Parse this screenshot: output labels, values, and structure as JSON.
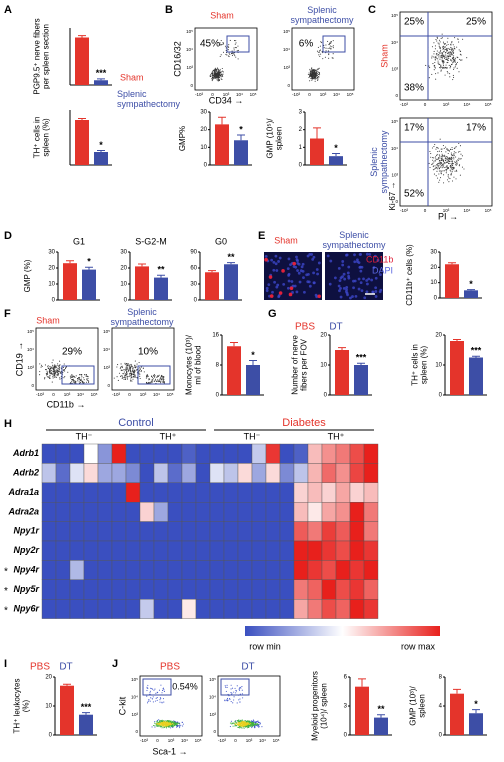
{
  "panel_letters": [
    "A",
    "B",
    "C",
    "D",
    "E",
    "F",
    "G",
    "H",
    "I",
    "J"
  ],
  "colors": [
    "#e4342b",
    "#3d4ea6"
  ],
  "groups": {
    "sham": "Sham",
    "splenic": "Splenic sympathectomy",
    "pbs": "PBS",
    "dt": "DT"
  },
  "flow": {
    "ticks": [
      "-10³",
      "0",
      "10³",
      "10⁴",
      "10⁵"
    ],
    "B": {
      "y_label": "CD16/32",
      "x_label": "CD34 →",
      "gates": [
        "45%",
        "6%"
      ]
    },
    "C": {
      "y_label": "Ki-67 →",
      "x_label": "PI →",
      "quadrants": [
        [
          "25%",
          "25%",
          "38%"
        ],
        [
          "17%",
          "17%",
          "52%"
        ]
      ]
    },
    "F": {
      "y_label": "CD19 →",
      "x_label": "CD11b →",
      "gates": [
        "29%",
        "10%"
      ]
    },
    "J": {
      "y_label": "C-kit",
      "x_label": "Sca-1 →",
      "gate": "0.54%"
    }
  },
  "imaging": {
    "stains": [
      "CD11b",
      "DAPI"
    ]
  },
  "charts": [
    {
      "ylabel": "PGP9.5⁺ nerve fibers per spleen section",
      "values": [
        10,
        1
      ],
      "errors": [
        0.4,
        0.3
      ],
      "sig": "***",
      "ylim": [
        0,
        12
      ]
    },
    {
      "ylabel": "TH⁺ cells in spleen (%)",
      "values": [
        45,
        13
      ],
      "errors": [
        1.5,
        1.5
      ],
      "sig": "*",
      "ylim": [
        0,
        55
      ]
    },
    {
      "ylabel": "GMP%",
      "values": [
        23,
        14
      ],
      "errors": [
        4,
        3
      ],
      "sig": "*",
      "ylim": [
        0,
        30
      ],
      "yticks": [
        0,
        10,
        20,
        30
      ]
    },
    {
      "ylabel": "GMP (10⁵)/ spleen",
      "values": [
        1.5,
        0.5
      ],
      "errors": [
        0.6,
        0.15
      ],
      "sig": "*",
      "ylim": [
        0,
        3
      ],
      "yticks": [
        0,
        1,
        2,
        3
      ]
    },
    {
      "title": "G1",
      "ylabel": "GMP (%)",
      "values": [
        23,
        19
      ],
      "errors": [
        1.5,
        1.5
      ],
      "sig": "*",
      "ylim": [
        0,
        30
      ],
      "yticks": [
        0,
        10,
        20,
        30
      ]
    },
    {
      "title": "S-G2-M",
      "values": [
        21,
        14
      ],
      "errors": [
        1.5,
        1.5
      ],
      "sig": "**",
      "ylim": [
        0,
        30
      ],
      "yticks": [
        0,
        10,
        20,
        30
      ]
    },
    {
      "title": "G0",
      "values": [
        52,
        67
      ],
      "errors": [
        3,
        3
      ],
      "sig": "**",
      "ylim": [
        0,
        90
      ],
      "yticks": [
        0,
        30,
        60,
        90
      ]
    },
    {
      "ylabel": "CD11b⁺ cells (%)",
      "values": [
        22,
        5
      ],
      "errors": [
        1,
        0.5
      ],
      "sig": "*",
      "ylim": [
        0,
        30
      ],
      "yticks": [
        0,
        10,
        20,
        30
      ]
    },
    {
      "ylabel": "Monocytes (10³)/ ml of blood",
      "values": [
        13,
        8
      ],
      "errors": [
        1,
        1.2
      ],
      "sig": "*",
      "ylim": [
        0,
        16
      ],
      "yticks": [
        0,
        8,
        16
      ]
    },
    {
      "ylabel": "Number of nerve fibers per FOV",
      "values": [
        15,
        10
      ],
      "errors": [
        0.8,
        0.6
      ],
      "sig": "***",
      "ylim": [
        0,
        20
      ],
      "yticks": [
        0,
        10,
        20
      ]
    },
    {
      "ylabel": "TH⁺ cells in spleen (%)",
      "values": [
        18,
        12.5
      ],
      "errors": [
        0.5,
        0.4
      ],
      "sig": "***",
      "ylim": [
        0,
        20
      ],
      "yticks": [
        0,
        10,
        20
      ]
    },
    {
      "ylabel": "TH⁺ leukocytes (%)",
      "values": [
        17,
        7
      ],
      "errors": [
        0.5,
        0.7
      ],
      "sig": "***",
      "ylim": [
        0,
        20
      ],
      "yticks": [
        0,
        10,
        20
      ]
    },
    {
      "ylabel": "Myeloid progenitors (10⁴)/ spleen",
      "values": [
        5,
        1.8
      ],
      "errors": [
        0.8,
        0.3
      ],
      "sig": "**",
      "ylim": [
        0,
        6
      ],
      "yticks": [
        0,
        3,
        6
      ]
    },
    {
      "ylabel": "GMP (10³)/ spleen",
      "values": [
        5.7,
        3
      ],
      "errors": [
        0.6,
        0.5
      ],
      "sig": "*",
      "ylim": [
        0,
        8
      ],
      "yticks": [
        0,
        4,
        8
      ]
    }
  ],
  "heatmap": {
    "groups": [
      "Control",
      "Diabetes"
    ],
    "subgroups": [
      "TH⁻",
      "TH⁺",
      "TH⁻",
      "TH⁺"
    ],
    "rows": [
      "Adrb1",
      "Adrb2",
      "Adra1a",
      "Adra2a",
      "Npy1r",
      "Npy2r",
      "Npy4r",
      "Npy5r",
      "Npy6r"
    ],
    "row_marks": [
      null,
      null,
      null,
      null,
      null,
      null,
      "*",
      "*",
      "*"
    ],
    "scale_labels": [
      "row min",
      "row max"
    ],
    "values": [
      [
        -1,
        -1,
        -1,
        0,
        -0.6,
        1,
        -1,
        -1,
        -1,
        -1,
        -0.9,
        -1,
        -1,
        -1,
        -1,
        -0.3,
        0.9,
        -1,
        -0.9,
        0.3,
        0.5,
        0.6,
        0.8,
        1
      ],
      [
        -0.2,
        -0.5,
        -0.1,
        0.1,
        -0.3,
        -0.3,
        -0.4,
        -0.6,
        -0.2,
        -0.5,
        -0.3,
        -0.6,
        -0.1,
        -0.2,
        0.1,
        -0.3,
        0.1,
        -0.4,
        -0.2,
        0.2,
        0.4,
        0.3,
        0.5,
        0.6
      ],
      [
        -1,
        -1,
        -1,
        -1,
        -1,
        -1,
        1,
        -1,
        -1,
        -1,
        -1,
        -1,
        -1,
        -1,
        -1,
        -1,
        -1,
        -1,
        0.2,
        0.3,
        0.2,
        0.4,
        0.2,
        0.3
      ],
      [
        -1,
        -1,
        -1,
        -1,
        -1,
        -1,
        -1,
        0.2,
        -0.5,
        -1,
        -1,
        -1,
        -1,
        -1,
        -1,
        -1,
        -1,
        -1,
        0.3,
        0.1,
        0.4,
        0.5,
        1,
        0.6
      ],
      [
        -1,
        -1,
        -1,
        -1,
        -1,
        -1,
        -1,
        -1,
        -1,
        -1,
        -1,
        -1,
        -1,
        -1,
        -1,
        -1,
        -1,
        -1,
        0.3,
        0.2,
        0.4,
        0.3,
        0.5,
        0.2
      ],
      [
        -1,
        -1,
        -1,
        -1,
        -1,
        -1,
        -1,
        -1,
        -1,
        -1,
        -1,
        -1,
        -1,
        -1,
        -1,
        -1,
        -1,
        -1,
        1,
        1,
        0.9,
        0.8,
        1,
        0.9
      ],
      [
        -1,
        -1,
        -0.4,
        -1,
        -1,
        -1,
        -1,
        -1,
        -1,
        -1,
        -1,
        -1,
        -1,
        -1,
        -1,
        -1,
        -1,
        -1,
        1,
        0.9,
        0.8,
        1,
        0.9,
        1
      ],
      [
        -1,
        -1,
        -1,
        -1,
        -1,
        -1,
        -1,
        -1,
        -1,
        -1,
        -1,
        -1,
        -1,
        -1,
        -1,
        -1,
        -1,
        -1,
        0.6,
        0.7,
        1,
        0.8,
        0.9,
        0.7
      ],
      [
        -1,
        -1,
        -1,
        -1,
        -1,
        -1,
        -1,
        -0.3,
        -1,
        -1,
        0.1,
        -1,
        -1,
        -1,
        -1,
        -1,
        -1,
        -1,
        0.4,
        0.6,
        0.8,
        0.7,
        1,
        0.9
      ]
    ]
  }
}
